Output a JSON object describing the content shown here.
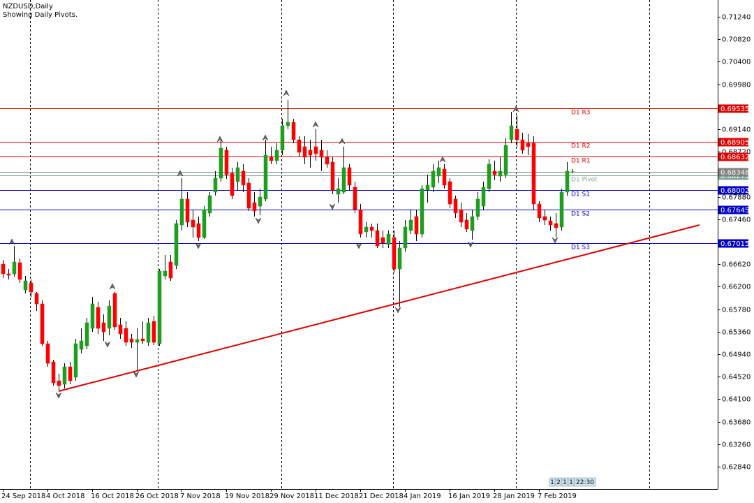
{
  "chart_data": {
    "type": "candlestick",
    "title": "NZDUSD,Daily",
    "subtitle": "Showing Daily Pivots.",
    "categories": [
      "24 Sep 2018",
      null,
      null,
      null,
      null,
      null,
      null,
      null,
      "4 Oct 2018",
      null,
      null,
      null,
      null,
      null,
      null,
      null,
      "16 Oct 2018",
      null,
      null,
      null,
      null,
      null,
      null,
      null,
      "26 Oct 2018",
      null,
      null,
      null,
      null,
      null,
      null,
      null,
      "7 Nov 2018",
      null,
      null,
      null,
      null,
      null,
      null,
      null,
      "19 Nov 2018",
      null,
      null,
      null,
      null,
      null,
      null,
      null,
      "29 Nov 2018",
      null,
      null,
      null,
      null,
      null,
      null,
      null,
      "11 Dec 2018",
      null,
      null,
      null,
      null,
      null,
      null,
      null,
      "21 Dec 2018",
      null,
      null,
      null,
      null,
      null,
      null,
      null,
      "4 Jan 2019",
      null,
      null,
      null,
      null,
      null,
      null,
      null,
      "16 Jan 2019",
      null,
      null,
      null,
      null,
      null,
      null,
      null,
      "28 Jan 2019",
      null,
      null,
      null,
      null,
      null,
      null,
      null,
      "7 Feb 2019",
      null,
      null,
      null,
      null,
      null,
      null
    ],
    "open": [
      0.66623,
      0.6644,
      0.6644,
      0.66649,
      0.6614,
      0.6627,
      0.66075,
      0.65879,
      0.65136,
      0.64797,
      0.64444,
      0.64379,
      0.64705,
      0.6451,
      0.65031,
      0.65097,
      0.65423,
      0.65814,
      0.65527,
      0.65423,
      0.66075,
      0.65488,
      0.65423,
      0.65227,
      0.65162,
      0.65227,
      0.65162,
      0.65553,
      0.65136,
      0.66401,
      0.66662,
      0.66596,
      0.67353,
      0.67836,
      0.67444,
      0.67379,
      0.67118,
      0.67575,
      0.67966,
      0.68227,
      0.68749,
      0.68318,
      0.68162,
      0.68357,
      0.68136,
      0.6777,
      0.67705,
      0.67836,
      0.68618,
      0.68553,
      0.68749,
      0.69205,
      0.6927,
      0.68944,
      0.68814,
      0.68749,
      0.68814,
      0.68749,
      0.68618,
      0.68527,
      0.67927,
      0.67966,
      0.68423,
      0.68057,
      0.6764,
      0.67223,
      0.67314,
      0.67249,
      0.67118,
      0.66988,
      0.67118,
      0.66531,
      0.66923,
      0.67249,
      0.6751,
      0.67183,
      0.68005,
      0.68057,
      0.68266,
      0.68397,
      0.68162,
      0.67836,
      0.6764,
      0.67444,
      0.67249,
      0.6751,
      0.67705,
      0.68031,
      0.68357,
      0.68266,
      0.68292,
      0.68944,
      0.6914,
      0.68944,
      0.68879,
      0.68879,
      0.67744,
      0.6751,
      0.67431,
      0.67379,
      0.67314,
      0.67966,
      0.68344
    ],
    "high": [
      0.66701,
      0.66531,
      0.66962,
      0.66727,
      0.66401,
      0.66336,
      0.66101,
      0.65944,
      0.65188,
      0.64836,
      0.64575,
      0.6477,
      0.64797,
      0.65227,
      0.65423,
      0.65618,
      0.6601,
      0.65918,
      0.65683,
      0.65944,
      0.66101,
      0.65618,
      0.65553,
      0.65318,
      0.65423,
      0.65553,
      0.65618,
      0.65657,
      0.66531,
      0.66792,
      0.66792,
      0.67444,
      0.68227,
      0.67966,
      0.6764,
      0.6751,
      0.67705,
      0.67966,
      0.68357,
      0.68944,
      0.68814,
      0.68423,
      0.68527,
      0.68488,
      0.68227,
      0.67966,
      0.68031,
      0.68944,
      0.68814,
      0.68879,
      0.69336,
      0.69688,
      0.69336,
      0.69009,
      0.69009,
      0.68944,
      0.6914,
      0.68944,
      0.68749,
      0.68618,
      0.68227,
      0.68814,
      0.68488,
      0.68162,
      0.67744,
      0.67405,
      0.67379,
      0.67379,
      0.67249,
      0.67249,
      0.67249,
      0.67053,
      0.67444,
      0.6764,
      0.6764,
      0.68097,
      0.68292,
      0.68488,
      0.68553,
      0.68488,
      0.68227,
      0.67901,
      0.6777,
      0.67575,
      0.6764,
      0.67966,
      0.68162,
      0.68579,
      0.68553,
      0.68618,
      0.6897,
      0.69466,
      0.69401,
      0.69075,
      0.69049,
      0.69009,
      0.67796,
      0.6764,
      0.6751,
      0.67575,
      0.68031,
      0.68527,
      0.68397
    ],
    "low": [
      0.66362,
      0.66336,
      0.66388,
      0.6627,
      0.66075,
      0.6601,
      0.65749,
      0.65097,
      0.64705,
      0.64353,
      0.64249,
      0.64301,
      0.64379,
      0.64444,
      0.64953,
      0.65031,
      0.65357,
      0.65318,
      0.65188,
      0.65292,
      0.65397,
      0.65227,
      0.65097,
      0.65057,
      0.6464,
      0.65136,
      0.65097,
      0.6511,
      0.65097,
      0.66336,
      0.6631,
      0.66531,
      0.67249,
      0.67314,
      0.67118,
      0.67053,
      0.67092,
      0.6751,
      0.67901,
      0.68162,
      0.68214,
      0.67836,
      0.68005,
      0.67966,
      0.67614,
      0.6751,
      0.67536,
      0.67796,
      0.68488,
      0.68488,
      0.68657,
      0.6914,
      0.68879,
      0.68618,
      0.68488,
      0.68423,
      0.68553,
      0.68357,
      0.68423,
      0.67927,
      0.6777,
      0.67927,
      0.68005,
      0.67575,
      0.67118,
      0.67118,
      0.67118,
      0.66923,
      0.66923,
      0.66923,
      0.66466,
      0.65814,
      0.66857,
      0.67183,
      0.67053,
      0.67118,
      0.6777,
      0.67966,
      0.68136,
      0.68031,
      0.67666,
      0.67483,
      0.67314,
      0.67223,
      0.67079,
      0.67444,
      0.6764,
      0.67966,
      0.68188,
      0.68162,
      0.68227,
      0.68879,
      0.68814,
      0.68683,
      0.68657,
      0.6764,
      0.67405,
      0.67353,
      0.67249,
      0.67118,
      0.67249,
      0.67901,
      0.68318
    ],
    "close": [
      0.6644,
      0.66414,
      0.66662,
      0.66336,
      0.6631,
      0.66101,
      0.65879,
      0.65136,
      0.6477,
      0.64405,
      0.64353,
      0.64705,
      0.64444,
      0.65136,
      0.65188,
      0.65527,
      0.65879,
      0.65423,
      0.65357,
      0.6584,
      0.65449,
      0.65318,
      0.65162,
      0.65162,
      0.65214,
      0.65188,
      0.65527,
      0.65162,
      0.66492,
      0.66492,
      0.66362,
      0.67379,
      0.67836,
      0.67405,
      0.67314,
      0.67118,
      0.6764,
      0.67901,
      0.68227,
      0.68788,
      0.68292,
      0.67901,
      0.68423,
      0.68097,
      0.67666,
      0.67614,
      0.67875,
      0.68657,
      0.68553,
      0.68749,
      0.69205,
      0.6927,
      0.68944,
      0.68709,
      0.68618,
      0.68657,
      0.68683,
      0.68618,
      0.68488,
      0.68005,
      0.68031,
      0.68423,
      0.68097,
      0.6764,
      0.67183,
      0.67314,
      0.67249,
      0.66962,
      0.67014,
      0.67183,
      0.66531,
      0.66923,
      0.67314,
      0.67444,
      0.67183,
      0.68031,
      0.68097,
      0.68357,
      0.68423,
      0.68097,
      0.67744,
      0.67575,
      0.67405,
      0.67275,
      0.6751,
      0.67836,
      0.68057,
      0.68488,
      0.68292,
      0.68357,
      0.6884,
      0.69205,
      0.68944,
      0.68749,
      0.68814,
      0.67744,
      0.67483,
      0.67444,
      0.67353,
      0.67301,
      0.67966,
      0.68357,
      0.68348
    ],
    "up_color": "#1e9e1e",
    "down_color": "#ff0000",
    "wick_color": "#000000",
    "ylim": [
      0.62423,
      0.71553
    ],
    "yticks": [
      {
        "value": 0.7124,
        "label": "0.71240"
      },
      {
        "value": 0.7082,
        "label": "0.70820"
      },
      {
        "value": 0.704,
        "label": "0.70400"
      },
      {
        "value": 0.6998,
        "label": "0.69980"
      },
      {
        "value": 0.6914,
        "label": "0.69140"
      },
      {
        "value": 0.6872,
        "label": "0.68720"
      },
      {
        "value": 0.6788,
        "label": "0.67880"
      },
      {
        "value": 0.6746,
        "label": "0.67460"
      },
      {
        "value": 0.6662,
        "label": "0.66620"
      },
      {
        "value": 0.662,
        "label": "0.66200"
      },
      {
        "value": 0.6578,
        "label": "0.65780"
      },
      {
        "value": 0.6536,
        "label": "0.65360"
      },
      {
        "value": 0.6494,
        "label": "0.64940"
      },
      {
        "value": 0.6452,
        "label": "0.64520"
      },
      {
        "value": 0.641,
        "label": "0.64100"
      },
      {
        "value": 0.6368,
        "label": "0.63680"
      },
      {
        "value": 0.6326,
        "label": "0.63260"
      },
      {
        "value": 0.6284,
        "label": "0.62840"
      }
    ],
    "levels": [
      {
        "name": "D1 R3",
        "value": 0.69535,
        "color": "#e00000"
      },
      {
        "name": "D1 R2",
        "value": 0.68905,
        "color": "#e00000"
      },
      {
        "name": "D1 R1",
        "value": 0.68632,
        "color": "#e00000"
      },
      {
        "name": "D1 Pivot",
        "value": 0.68275,
        "color": "#7fa89c"
      },
      {
        "name": "D1 S1",
        "value": 0.68002,
        "color": "#0000c8"
      },
      {
        "name": "D1 S2",
        "value": 0.67645,
        "color": "#0000c8"
      },
      {
        "name": "D1 S3",
        "value": 0.67015,
        "color": "#0000c8"
      }
    ],
    "bid": 0.68348,
    "bid_color": "#808080",
    "timer": [
      "1",
      "2",
      "1",
      "1",
      "22:30"
    ]
  }
}
